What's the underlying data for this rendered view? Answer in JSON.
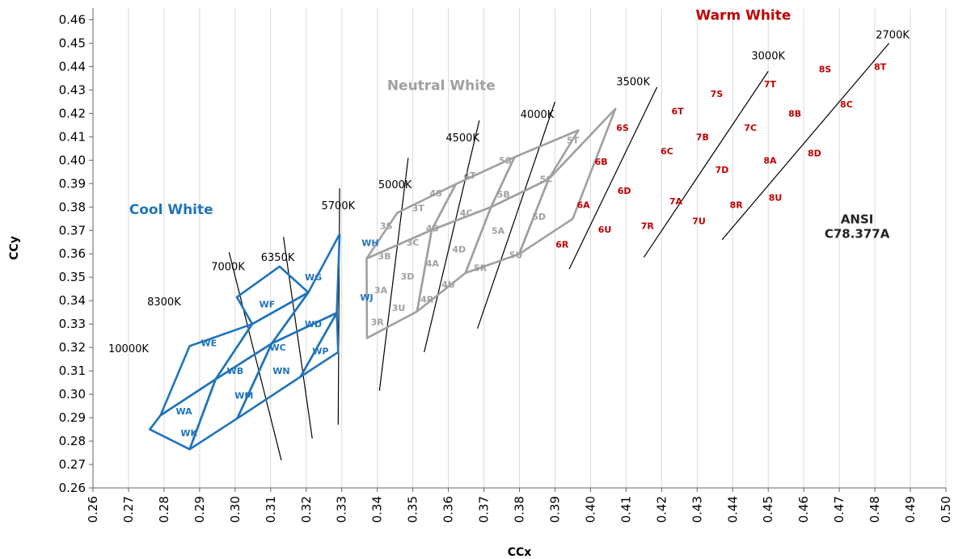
{
  "chart_data": {
    "type": "line",
    "xlabel": "CCx",
    "ylabel": "CCy",
    "xlim": [
      0.26,
      0.5
    ],
    "ylim": [
      0.26,
      0.465
    ],
    "x_ticks": [
      "0.26",
      "0.27",
      "0.28",
      "0.29",
      "0.30",
      "0.31",
      "0.32",
      "0.33",
      "0.34",
      "0.35",
      "0.36",
      "0.37",
      "0.38",
      "0.39",
      "0.40",
      "0.41",
      "0.42",
      "0.43",
      "0.44",
      "0.45",
      "0.46",
      "0.47",
      "0.48",
      "0.49",
      "0.50"
    ],
    "y_ticks": [
      "0.26",
      "0.27",
      "0.28",
      "0.29",
      "0.30",
      "0.31",
      "0.32",
      "0.33",
      "0.34",
      "0.35",
      "0.36",
      "0.37",
      "0.38",
      "0.39",
      "0.40",
      "0.41",
      "0.42",
      "0.43",
      "0.44",
      "0.45",
      "0.46"
    ],
    "grid": "vertical",
    "colors": {
      "cool": "#1f74bc",
      "neutral": "#a0a0a0",
      "warm": "#c00000",
      "dash": "#1a1a1a",
      "isotherm": "#000000"
    },
    "group_labels": [
      {
        "text": "Cool White",
        "color": "cool",
        "x": 0.282,
        "y": 0.377
      },
      {
        "text": "Neutral White",
        "color": "neutral",
        "x": 0.358,
        "y": 0.43
      },
      {
        "text": "Warm White",
        "color": "warm",
        "x": 0.443,
        "y": 0.46
      }
    ],
    "standard_label": {
      "lines": [
        "ANSI",
        "C78.377A"
      ],
      "x": 0.475,
      "y": 0.373
    },
    "cct_lines": [
      {
        "label": "10000K",
        "x": [
          0.0,
          0.0
        ],
        "y": [
          0.0,
          0.0
        ],
        "lx": 0.27,
        "ly": 0.318
      },
      {
        "label": "8300K",
        "x": [
          0.0,
          0.0
        ],
        "y": [
          0.0,
          0.0
        ],
        "lx": 0.28,
        "ly": 0.338
      },
      {
        "label": "7000K",
        "x": [
          0.2983,
          0.313
        ],
        "y": [
          0.3607,
          0.2718
        ],
        "lx": 0.298,
        "ly": 0.353
      },
      {
        "label": "6350K",
        "x": [
          0.3136,
          0.3217
        ],
        "y": [
          0.3672,
          0.2811
        ],
        "lx": 0.312,
        "ly": 0.357
      },
      {
        "label": "5700K",
        "x": [
          0.3294,
          0.329
        ],
        "y": [
          0.388,
          0.287
        ],
        "lx": 0.329,
        "ly": 0.379
      },
      {
        "label": "5000K",
        "x": [
          0.3487,
          0.3406
        ],
        "y": [
          0.401,
          0.3015
        ],
        "lx": 0.345,
        "ly": 0.388
      },
      {
        "label": "4500K",
        "x": [
          0.3687,
          0.3532
        ],
        "y": [
          0.417,
          0.318
        ],
        "lx": 0.364,
        "ly": 0.408
      },
      {
        "label": "4000K",
        "x": [
          0.39,
          0.3682
        ],
        "y": [
          0.425,
          0.3281
        ],
        "lx": 0.385,
        "ly": 0.418
      },
      {
        "label": "3500K",
        "x": [
          0.4187,
          0.394
        ],
        "y": [
          0.4312,
          0.3535
        ],
        "lx": 0.412,
        "ly": 0.432
      },
      {
        "label": "3000K",
        "x": [
          0.45,
          0.415
        ],
        "y": [
          0.438,
          0.3585
        ],
        "lx": 0.45,
        "ly": 0.443
      },
      {
        "label": "2700K",
        "x": [
          0.484,
          0.437
        ],
        "y": [
          0.45,
          0.366
        ],
        "lx": 0.485,
        "ly": 0.452
      }
    ],
    "quadrangles": [
      {
        "color": "cool",
        "corners": [
          [
            0.279,
            0.291
          ],
          [
            0.2945,
            0.3064
          ],
          [
            0.3048,
            0.33
          ],
          [
            0.2872,
            0.3206
          ]
        ]
      },
      {
        "color": "cool",
        "corners": [
          [
            0.2945,
            0.3064
          ],
          [
            0.3103,
            0.3217
          ],
          [
            0.3206,
            0.3435
          ],
          [
            0.3048,
            0.33
          ]
        ]
      },
      {
        "color": "cool",
        "corners": [
          [
            0.3048,
            0.33
          ],
          [
            0.3206,
            0.3435
          ],
          [
            0.3125,
            0.3546
          ],
          [
            0.3005,
            0.3415
          ]
        ]
      },
      {
        "color": "cool",
        "corners": [
          [
            0.3103,
            0.3217
          ],
          [
            0.3286,
            0.3348
          ],
          [
            0.3294,
            0.3684
          ],
          [
            0.3206,
            0.3435
          ]
        ]
      },
      {
        "color": "cool",
        "corners": [
          [
            0.2872,
            0.2765
          ],
          [
            0.3006,
            0.2897
          ],
          [
            0.3103,
            0.3217
          ],
          [
            0.2945,
            0.3064
          ]
        ]
      },
      {
        "color": "cool",
        "corners": [
          [
            0.276,
            0.285
          ],
          [
            0.2872,
            0.2765
          ],
          [
            0.2945,
            0.3064
          ],
          [
            0.279,
            0.291
          ]
        ]
      },
      {
        "color": "cool",
        "corners": [
          [
            0.3006,
            0.2897
          ],
          [
            0.3184,
            0.3075
          ],
          [
            0.3286,
            0.3348
          ],
          [
            0.3103,
            0.3217
          ]
        ]
      },
      {
        "color": "cool",
        "corners": [
          [
            0.3184,
            0.3075
          ],
          [
            0.329,
            0.318
          ],
          [
            0.3286,
            0.3348
          ],
          [
            0.3184,
            0.3075
          ]
        ]
      },
      {
        "color": "neutral",
        "corners": [
          [
            0.3371,
            0.324
          ],
          [
            0.3512,
            0.3354
          ],
          [
            0.3553,
            0.3702
          ],
          [
            0.337,
            0.358
          ]
        ]
      },
      {
        "color": "neutral",
        "corners": [
          [
            0.337,
            0.358
          ],
          [
            0.3553,
            0.3702
          ],
          [
            0.3621,
            0.3898
          ],
          [
            0.3456,
            0.3775
          ]
        ]
      },
      {
        "color": "neutral",
        "corners": [
          [
            0.3512,
            0.3354
          ],
          [
            0.3648,
            0.3518
          ],
          [
            0.372,
            0.38
          ],
          [
            0.3553,
            0.3702
          ]
        ]
      },
      {
        "color": "neutral",
        "corners": [
          [
            0.3553,
            0.3702
          ],
          [
            0.372,
            0.38
          ],
          [
            0.3786,
            0.4013
          ],
          [
            0.3621,
            0.3898
          ]
        ]
      },
      {
        "color": "neutral",
        "corners": [
          [
            0.3648,
            0.3518
          ],
          [
            0.3799,
            0.3599
          ],
          [
            0.3882,
            0.3919
          ],
          [
            0.372,
            0.38
          ]
        ]
      },
      {
        "color": "neutral",
        "corners": [
          [
            0.372,
            0.38
          ],
          [
            0.3882,
            0.3919
          ],
          [
            0.3966,
            0.4128
          ],
          [
            0.3786,
            0.4013
          ]
        ]
      },
      {
        "color": "neutral",
        "corners": [
          [
            0.3799,
            0.3599
          ],
          [
            0.395,
            0.375
          ],
          [
            0.407,
            0.422
          ],
          [
            0.3882,
            0.3919
          ]
        ]
      }
    ],
    "bins": [
      {
        "label": "WA",
        "color": "cool",
        "x": 0.2856,
        "y": 0.2927
      },
      {
        "label": "WK",
        "color": "cool",
        "x": 0.287,
        "y": 0.2834
      },
      {
        "label": "WE",
        "color": "cool",
        "x": 0.2926,
        "y": 0.322
      },
      {
        "label": "WB",
        "color": "cool",
        "x": 0.3,
        "y": 0.31
      },
      {
        "label": "WM",
        "color": "cool",
        "x": 0.3025,
        "y": 0.2995
      },
      {
        "label": "WF",
        "color": "cool",
        "x": 0.309,
        "y": 0.3385
      },
      {
        "label": "WC",
        "color": "cool",
        "x": 0.312,
        "y": 0.32
      },
      {
        "label": "WN",
        "color": "cool",
        "x": 0.313,
        "y": 0.31
      },
      {
        "label": "WG",
        "color": "cool",
        "x": 0.322,
        "y": 0.35
      },
      {
        "label": "WD",
        "color": "cool",
        "x": 0.322,
        "y": 0.33
      },
      {
        "label": "WP",
        "color": "cool",
        "x": 0.324,
        "y": 0.3185
      },
      {
        "label": "WH",
        "color": "cool",
        "x": 0.338,
        "y": 0.3648
      },
      {
        "label": "WJ",
        "color": "cool",
        "x": 0.337,
        "y": 0.3415
      },
      {
        "label": "3S",
        "color": "neutral",
        "x": 0.3425,
        "y": 0.372
      },
      {
        "label": "3B",
        "color": "neutral",
        "x": 0.342,
        "y": 0.359
      },
      {
        "label": "3A",
        "color": "neutral",
        "x": 0.341,
        "y": 0.3445
      },
      {
        "label": "3R",
        "color": "neutral",
        "x": 0.34,
        "y": 0.331
      },
      {
        "label": "3T",
        "color": "neutral",
        "x": 0.3515,
        "y": 0.3795
      },
      {
        "label": "3C",
        "color": "neutral",
        "x": 0.35,
        "y": 0.365
      },
      {
        "label": "3D",
        "color": "neutral",
        "x": 0.3485,
        "y": 0.3505
      },
      {
        "label": "3U",
        "color": "neutral",
        "x": 0.346,
        "y": 0.337
      },
      {
        "label": "4S",
        "color": "neutral",
        "x": 0.3565,
        "y": 0.386
      },
      {
        "label": "4B",
        "color": "neutral",
        "x": 0.3555,
        "y": 0.371
      },
      {
        "label": "4A",
        "color": "neutral",
        "x": 0.3555,
        "y": 0.356
      },
      {
        "label": "4R",
        "color": "neutral",
        "x": 0.354,
        "y": 0.3405
      },
      {
        "label": "4T",
        "color": "neutral",
        "x": 0.366,
        "y": 0.3935
      },
      {
        "label": "4C",
        "color": "neutral",
        "x": 0.365,
        "y": 0.3775
      },
      {
        "label": "4D",
        "color": "neutral",
        "x": 0.363,
        "y": 0.362
      },
      {
        "label": "4U",
        "color": "neutral",
        "x": 0.36,
        "y": 0.347
      },
      {
        "label": "5S",
        "color": "neutral",
        "x": 0.376,
        "y": 0.4
      },
      {
        "label": "5B",
        "color": "neutral",
        "x": 0.3755,
        "y": 0.3855
      },
      {
        "label": "5A",
        "color": "neutral",
        "x": 0.374,
        "y": 0.37
      },
      {
        "label": "5R",
        "color": "neutral",
        "x": 0.369,
        "y": 0.354
      },
      {
        "label": "5T",
        "color": "neutral",
        "x": 0.395,
        "y": 0.4085
      },
      {
        "label": "5C",
        "color": "neutral",
        "x": 0.3875,
        "y": 0.392
      },
      {
        "label": "5D",
        "color": "neutral",
        "x": 0.3855,
        "y": 0.376
      },
      {
        "label": "5U",
        "color": "neutral",
        "x": 0.379,
        "y": 0.3595
      },
      {
        "label": "6S",
        "color": "warm",
        "x": 0.409,
        "y": 0.414
      },
      {
        "label": "6T",
        "color": "warm",
        "x": 0.4245,
        "y": 0.421
      },
      {
        "label": "6B",
        "color": "warm",
        "x": 0.403,
        "y": 0.3995
      },
      {
        "label": "6C",
        "color": "warm",
        "x": 0.4215,
        "y": 0.404
      },
      {
        "label": "6A",
        "color": "warm",
        "x": 0.398,
        "y": 0.381
      },
      {
        "label": "6D",
        "color": "warm",
        "x": 0.4095,
        "y": 0.387
      },
      {
        "label": "6R",
        "color": "warm",
        "x": 0.392,
        "y": 0.364
      },
      {
        "label": "6U",
        "color": "warm",
        "x": 0.404,
        "y": 0.3705
      },
      {
        "label": "7S",
        "color": "warm",
        "x": 0.4355,
        "y": 0.4285
      },
      {
        "label": "7T",
        "color": "warm",
        "x": 0.4505,
        "y": 0.4325
      },
      {
        "label": "7B",
        "color": "warm",
        "x": 0.4315,
        "y": 0.41
      },
      {
        "label": "7C",
        "color": "warm",
        "x": 0.445,
        "y": 0.414
      },
      {
        "label": "7A",
        "color": "warm",
        "x": 0.424,
        "y": 0.3825
      },
      {
        "label": "7D",
        "color": "warm",
        "x": 0.437,
        "y": 0.396
      },
      {
        "label": "7R",
        "color": "warm",
        "x": 0.416,
        "y": 0.372
      },
      {
        "label": "7U",
        "color": "warm",
        "x": 0.4305,
        "y": 0.374
      },
      {
        "label": "8S",
        "color": "warm",
        "x": 0.466,
        "y": 0.439
      },
      {
        "label": "8T",
        "color": "warm",
        "x": 0.4815,
        "y": 0.44
      },
      {
        "label": "8B",
        "color": "warm",
        "x": 0.4575,
        "y": 0.42
      },
      {
        "label": "8C",
        "color": "warm",
        "x": 0.472,
        "y": 0.424
      },
      {
        "label": "8A",
        "color": "warm",
        "x": 0.4505,
        "y": 0.4
      },
      {
        "label": "8D",
        "color": "warm",
        "x": 0.463,
        "y": 0.403
      },
      {
        "label": "8R",
        "color": "warm",
        "x": 0.441,
        "y": 0.381
      },
      {
        "label": "8U",
        "color": "warm",
        "x": 0.452,
        "y": 0.384
      }
    ]
  }
}
